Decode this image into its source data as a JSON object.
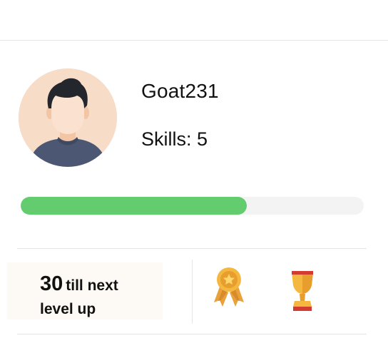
{
  "profile": {
    "username": "Goat231",
    "skills_text": "Skills: 5",
    "avatar_icon": "user-avatar-icon"
  },
  "progress": {
    "fraction": 0.66,
    "fill_color": "#62cc6e",
    "track_color": "#f3f3f3"
  },
  "level": {
    "number": "30",
    "text_after_number": "till next",
    "text_line2": "level up"
  },
  "badges": [
    {
      "icon": "medal-icon"
    },
    {
      "icon": "trophy-icon"
    }
  ]
}
